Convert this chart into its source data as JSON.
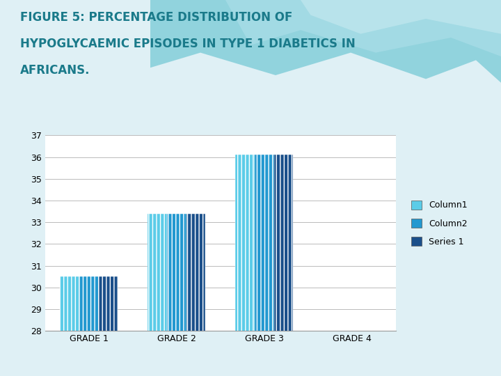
{
  "categories": [
    "GRADE 1",
    "GRADE 2",
    "GRADE 3",
    "GRADE 4"
  ],
  "series": [
    {
      "name": "Column1",
      "values": [
        30.5,
        33.4,
        36.1,
        0
      ],
      "color": "#5bcce8",
      "hatch": "|||"
    },
    {
      "name": "Column2",
      "values": [
        30.5,
        33.4,
        36.1,
        0
      ],
      "color": "#2298d0",
      "hatch": "|||"
    },
    {
      "name": "Series 1",
      "values": [
        30.5,
        33.4,
        36.1,
        0
      ],
      "color": "#1a4f8a",
      "hatch": "|||"
    }
  ],
  "ylim": [
    28,
    37
  ],
  "yticks": [
    28,
    29,
    30,
    31,
    32,
    33,
    34,
    35,
    36,
    37
  ],
  "title_line1": "FIGURE 5: PERCENTAGE DISTRIBUTION OF",
  "title_line2": "HYPOGLYCAEMIC EPISODES IN TYPE 1 DIABETICS IN",
  "title_line3": "AFRICANS.",
  "title_color": "#1a7a8a",
  "background_color": "#dff0f5",
  "plot_background": "#ffffff",
  "grid_color": "#bbbbbb",
  "bar_width": 0.22,
  "legend_colors": [
    "#5bcce8",
    "#2298d0",
    "#1a4f8a"
  ],
  "legend_labels": [
    "Column1",
    "Column2",
    "Series 1"
  ]
}
